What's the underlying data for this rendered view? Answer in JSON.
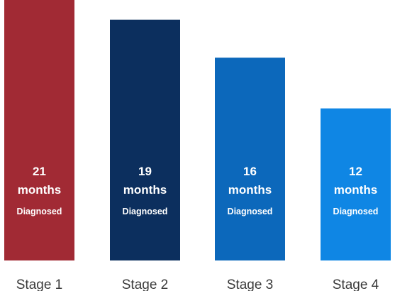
{
  "chart_data": {
    "type": "bar",
    "categories": [
      "Stage 1",
      "Stage 2",
      "Stage 3",
      "Stage 4"
    ],
    "values": [
      21,
      19,
      16,
      12
    ],
    "unit_label": "months",
    "bar_note": "Diagnosed",
    "ylim": [
      0,
      21
    ],
    "grid": false,
    "title": "",
    "xlabel": "",
    "ylabel": "",
    "colors": [
      "#a12a34",
      "#0c2f5e",
      "#0c68bb",
      "#0f86e4"
    ]
  }
}
